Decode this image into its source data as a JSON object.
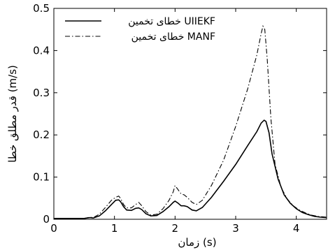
{
  "chart_data": {
    "type": "line",
    "title": "",
    "xlabel": "زمان (s)",
    "ylabel": "قدر مطلق خطا (m/s)",
    "xlim": [
      0,
      4.5
    ],
    "ylim": [
      0,
      0.5
    ],
    "xticks": [
      0,
      1,
      2,
      3,
      4
    ],
    "xtick_labels": [
      "0",
      "1",
      "2",
      "3",
      "4"
    ],
    "yticks": [
      0,
      0.1,
      0.2,
      0.3,
      0.4,
      0.5
    ],
    "ytick_labels": [
      "0",
      "0.1",
      "0.2",
      "0.3",
      "0.4",
      "0.5"
    ],
    "grid": false,
    "legend_position": "top-center",
    "series": [
      {
        "name": "خطای تخمین UIIEKF",
        "style": "solid",
        "color": "#000000",
        "x": [
          0.0,
          0.5,
          0.6,
          0.65,
          0.75,
          0.85,
          0.95,
          1.02,
          1.07,
          1.1,
          1.15,
          1.2,
          1.28,
          1.35,
          1.4,
          1.45,
          1.52,
          1.6,
          1.7,
          1.8,
          1.9,
          1.97,
          2.0,
          2.05,
          2.1,
          2.15,
          2.2,
          2.28,
          2.35,
          2.45,
          2.6,
          2.8,
          3.0,
          3.2,
          3.35,
          3.42,
          3.47,
          3.5,
          3.55,
          3.6,
          3.7,
          3.8,
          3.9,
          4.0,
          4.1,
          4.2,
          4.3,
          4.4,
          4.5
        ],
        "y": [
          0.002,
          0.002,
          0.004,
          0.003,
          0.008,
          0.02,
          0.035,
          0.045,
          0.046,
          0.042,
          0.03,
          0.022,
          0.021,
          0.026,
          0.027,
          0.023,
          0.013,
          0.008,
          0.009,
          0.018,
          0.03,
          0.04,
          0.043,
          0.038,
          0.032,
          0.032,
          0.03,
          0.022,
          0.02,
          0.028,
          0.052,
          0.09,
          0.13,
          0.175,
          0.208,
          0.228,
          0.235,
          0.232,
          0.205,
          0.155,
          0.095,
          0.058,
          0.038,
          0.025,
          0.016,
          0.011,
          0.007,
          0.005,
          0.004
        ]
      },
      {
        "name": "خطای تخمین MANF",
        "style": "dashdot",
        "color": "#000000",
        "x": [
          0.0,
          0.5,
          0.6,
          0.65,
          0.75,
          0.85,
          0.95,
          1.02,
          1.07,
          1.1,
          1.15,
          1.2,
          1.28,
          1.35,
          1.4,
          1.45,
          1.52,
          1.6,
          1.7,
          1.8,
          1.9,
          1.97,
          2.0,
          2.05,
          2.1,
          2.15,
          2.2,
          2.28,
          2.35,
          2.45,
          2.6,
          2.8,
          3.0,
          3.2,
          3.35,
          3.42,
          3.45,
          3.48,
          3.52,
          3.58,
          3.65,
          3.75,
          3.85,
          3.95,
          4.05,
          4.15,
          4.25,
          4.35,
          4.5
        ],
        "y": [
          0.002,
          0.002,
          0.005,
          0.004,
          0.012,
          0.028,
          0.045,
          0.052,
          0.055,
          0.05,
          0.035,
          0.027,
          0.027,
          0.035,
          0.04,
          0.032,
          0.018,
          0.01,
          0.012,
          0.025,
          0.045,
          0.065,
          0.08,
          0.07,
          0.06,
          0.058,
          0.052,
          0.04,
          0.035,
          0.045,
          0.08,
          0.14,
          0.22,
          0.31,
          0.39,
          0.44,
          0.458,
          0.45,
          0.38,
          0.24,
          0.13,
          0.075,
          0.048,
          0.032,
          0.022,
          0.015,
          0.01,
          0.007,
          0.005
        ]
      }
    ]
  }
}
